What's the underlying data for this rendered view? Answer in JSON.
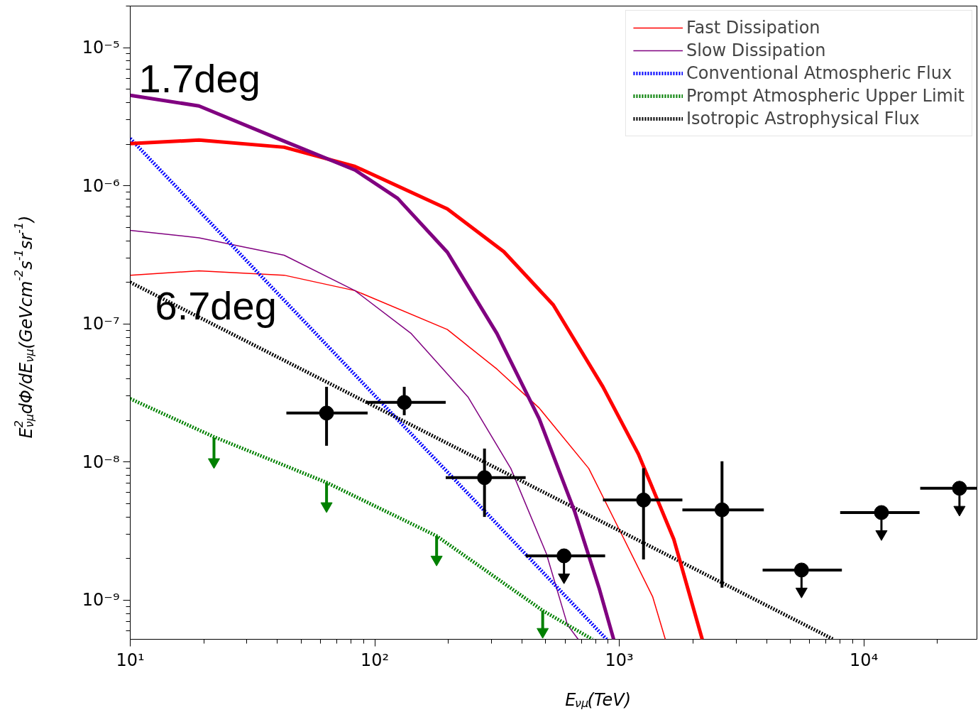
{
  "chart_data": {
    "type": "line",
    "xlabel": "E$_{νμ}$(TeV)",
    "ylabel": "E$^{2}$$_{νμ}$dΦ/dE$_{νμ}$(GeVcm$^{-2}$s$^{-1}$sr$^{-1}$)",
    "log": "xy",
    "xlim": [
      10,
      29000
    ],
    "ylim": [
      5.2e-10,
      2e-05
    ],
    "xticks": [
      {
        "value": 10,
        "label": "10¹"
      },
      {
        "value": 100,
        "label": "10²"
      },
      {
        "value": 1000,
        "label": "10³"
      },
      {
        "value": 10000,
        "label": "10⁴"
      }
    ],
    "yticks": [
      {
        "value": 1e-09,
        "label": "10⁻⁹"
      },
      {
        "value": 1e-08,
        "label": "10⁻⁸"
      },
      {
        "value": 1e-07,
        "label": "10⁻⁷"
      },
      {
        "value": 1e-06,
        "label": "10⁻⁶"
      },
      {
        "value": 1e-05,
        "label": "10⁻⁵"
      }
    ],
    "legend": "top right",
    "annotations": [
      "1.7deg",
      "6.7deg"
    ],
    "series": [
      {
        "name": "Fast Dissipation",
        "color": "#ff0000",
        "line_style": "solid",
        "x": [
          10,
          19.1,
          42.6,
          83,
          198,
          316,
          470,
          750,
          1047,
          1368,
          1542
        ],
        "values": [
          2.25e-07,
          2.42e-07,
          2.25e-07,
          1.74e-07,
          9.1e-08,
          4.7e-08,
          2.46e-08,
          8.97e-09,
          2.75e-09,
          1.06e-09,
          5.2e-10
        ]
      },
      {
        "name": "Slow Dissipation",
        "color": "#800080",
        "line_style": "solid",
        "x": [
          10,
          19.1,
          42.6,
          83,
          141,
          241,
          360,
          503,
          614,
          679
        ],
        "values": [
          4.75e-07,
          4.2e-07,
          3.14e-07,
          1.74e-07,
          8.5e-08,
          2.94e-08,
          8.97e-09,
          2.17e-09,
          6.6e-10,
          5.2e-10
        ]
      },
      {
        "name": "Conventional Atmospheric Flux",
        "color": "#0000ff",
        "line_style": "dotted",
        "x": [
          10,
          887
        ],
        "values": [
          2.2e-06,
          5.2e-10
        ]
      },
      {
        "name": "Prompt Atmospheric Upper Limit",
        "color": "#008000",
        "line_style": "dotted",
        "x": [
          10,
          21.8,
          63.5,
          179,
          486,
          776
        ],
        "values": [
          2.87e-08,
          1.53e-08,
          7.1e-09,
          2.91e-09,
          8.4e-10,
          5.2e-10
        ]
      },
      {
        "name": "Isotropic Astrophysical Flux",
        "color": "#000000",
        "line_style": "dotted",
        "x": [
          10,
          7500
        ],
        "values": [
          2e-07,
          5.2e-10
        ]
      },
      {
        "color": "#ff0000",
        "line_style": "solid",
        "x": [
          10,
          19.1,
          42.6,
          83,
          198,
          337,
          537,
          857,
          1197,
          1671,
          2183
        ],
        "values": [
          2.02e-06,
          2.14e-06,
          1.9e-06,
          1.38e-06,
          6.8e-07,
          3.33e-07,
          1.37e-07,
          3.5e-08,
          1.14e-08,
          2.75e-09,
          5.2e-10
        ]
      },
      {
        "color": "#800080",
        "line_style": "solid",
        "x": [
          10,
          19.1,
          42.6,
          83,
          124,
          198,
          316,
          470,
          656,
          829,
          948
        ],
        "values": [
          4.52e-06,
          3.78e-06,
          2.1e-06,
          1.3e-06,
          8.1e-07,
          3.3e-07,
          8.5e-08,
          2.06e-08,
          4.4e-09,
          1.2e-09,
          5.2e-10
        ]
      },
      {
        "type": "scatter",
        "color": "#008000",
        "marker": "triangle",
        "x": [
          22,
          63.5,
          179,
          486
        ],
        "values": [
          1e-08,
          4.8e-09,
          1.97e-09,
          5.9e-10
        ],
        "errors": [
          [
            1e-08,
            1.5e-08
          ],
          [
            4.8e-09,
            7.1e-09
          ],
          [
            1.97e-09,
            2.91e-09
          ],
          [
            5.9e-10,
            8.4e-10
          ]
        ]
      },
      {
        "type": "scatter",
        "color": "#000000",
        "marker": "circle",
        "x": [
          63.5,
          132,
          281,
          1256,
          2630
        ],
        "values": [
          2.26e-08,
          2.7e-08,
          7.7e-09,
          5.3e-09,
          4.5e-09
        ],
        "errors": [
          [
            1.31e-08,
            3.5e-08
          ],
          [
            2.18e-08,
            3.5e-08
          ],
          [
            4e-09,
            1.25e-08
          ],
          [
            1.97e-09,
            9e-09
          ],
          [
            1.23e-09,
            1.01e-08
          ]
        ],
        "xerrors": [
          [
            43.5,
            93.5
          ],
          [
            91.7,
            195
          ],
          [
            195,
            414
          ],
          [
            857,
            1811
          ],
          [
            1811,
            3899
          ]
        ]
      },
      {
        "type": "scatter",
        "color": "#000000",
        "marker": "circle",
        "x": [
          594,
          5560,
          11800,
          24600
        ],
        "values": [
          2.09e-09,
          1.65e-09,
          4.3e-09,
          6.45e-09
        ],
        "xerrors": [
          [
            414,
            875
          ],
          [
            3855,
            8130
          ],
          [
            8000,
            16900
          ],
          [
            17000,
            29000
          ]
        ]
      }
    ]
  }
}
